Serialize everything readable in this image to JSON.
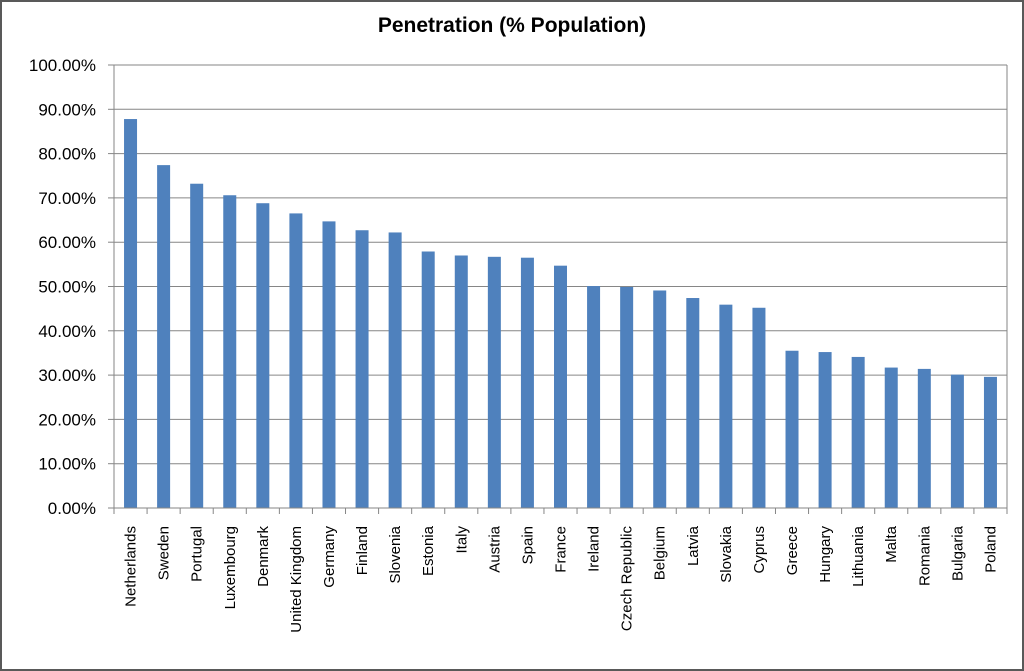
{
  "chart_data": {
    "type": "bar",
    "title": "Penetration (% Population)",
    "xlabel": "",
    "ylabel": "",
    "ylim": [
      0,
      100
    ],
    "y_ticks": [
      "0.00%",
      "10.00%",
      "20.00%",
      "30.00%",
      "40.00%",
      "50.00%",
      "60.00%",
      "70.00%",
      "80.00%",
      "90.00%",
      "100.00%"
    ],
    "grid": true,
    "legend": "none",
    "bar_color": "#4F81BD",
    "categories": [
      "Netherlands",
      "Sweden",
      "Portugal",
      "Luxembourg",
      "Denmark",
      "United Kingdom",
      "Germany",
      "Finland",
      "Slovenia",
      "Estonia",
      "Italy",
      "Austria",
      "Spain",
      "France",
      "Ireland",
      "Czech Republic",
      "Belgium",
      "Latvia",
      "Slovakia",
      "Cyprus",
      "Greece",
      "Hungary",
      "Lithuania",
      "Malta",
      "Romania",
      "Bulgaria",
      "Poland"
    ],
    "values": [
      87.8,
      77.4,
      73.2,
      70.6,
      68.8,
      66.5,
      64.7,
      62.7,
      62.2,
      57.9,
      57.0,
      56.7,
      56.5,
      54.7,
      50.1,
      49.9,
      49.1,
      47.4,
      45.9,
      45.2,
      35.5,
      35.2,
      34.1,
      31.7,
      31.4,
      30.1,
      29.6
    ]
  }
}
